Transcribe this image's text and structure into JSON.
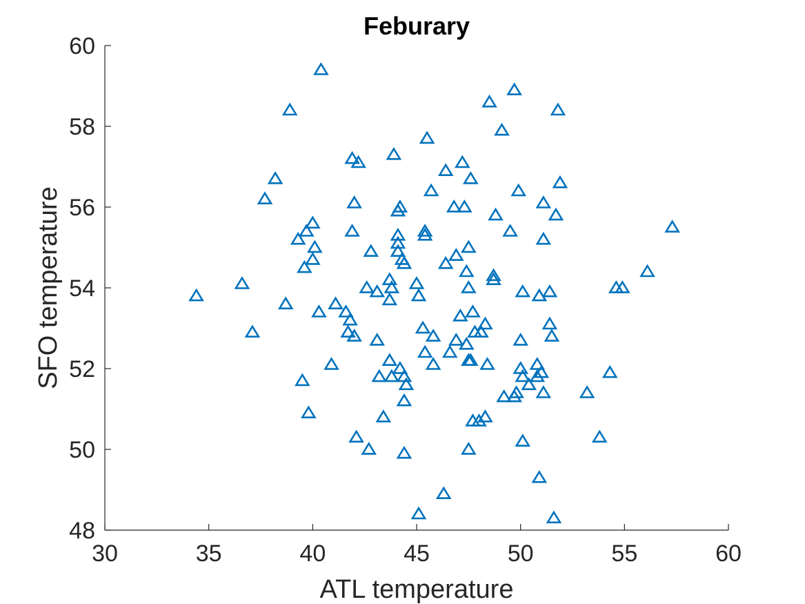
{
  "chart_data": {
    "type": "scatter",
    "title": "Feburary",
    "xlabel": "ATL temperature",
    "ylabel": "SFO temperature",
    "xlim": [
      30,
      60
    ],
    "ylim": [
      48,
      60
    ],
    "xticks": [
      30,
      35,
      40,
      45,
      50,
      55,
      60
    ],
    "yticks": [
      48,
      50,
      52,
      54,
      56,
      58,
      60
    ],
    "xtick_labels": [
      "30",
      "35",
      "40",
      "45",
      "50",
      "55",
      "60"
    ],
    "ytick_labels": [
      "48",
      "50",
      "52",
      "54",
      "56",
      "58",
      "60"
    ],
    "grid": false,
    "legend": false,
    "marker": "triangle",
    "marker_color": "#0072BD",
    "points": [
      [
        40.4,
        59.4
      ],
      [
        38.9,
        58.4
      ],
      [
        49.7,
        58.9
      ],
      [
        48.5,
        58.6
      ],
      [
        51.8,
        58.4
      ],
      [
        45.5,
        57.7
      ],
      [
        49.1,
        57.9
      ],
      [
        43.9,
        57.3
      ],
      [
        41.9,
        57.2
      ],
      [
        42.2,
        57.1
      ],
      [
        47.2,
        57.1
      ],
      [
        46.4,
        56.9
      ],
      [
        47.6,
        56.7
      ],
      [
        51.9,
        56.6
      ],
      [
        38.2,
        56.7
      ],
      [
        37.7,
        56.2
      ],
      [
        45.7,
        56.4
      ],
      [
        49.9,
        56.4
      ],
      [
        42.0,
        56.1
      ],
      [
        51.1,
        56.1
      ],
      [
        44.2,
        56.0
      ],
      [
        44.1,
        55.9
      ],
      [
        46.8,
        56.0
      ],
      [
        47.3,
        56.0
      ],
      [
        48.8,
        55.8
      ],
      [
        51.7,
        55.8
      ],
      [
        40.0,
        55.6
      ],
      [
        39.7,
        55.4
      ],
      [
        41.9,
        55.4
      ],
      [
        45.4,
        55.4
      ],
      [
        45.4,
        55.3
      ],
      [
        49.5,
        55.4
      ],
      [
        44.1,
        55.3
      ],
      [
        39.3,
        55.2
      ],
      [
        51.1,
        55.2
      ],
      [
        57.3,
        55.5
      ],
      [
        40.1,
        55.0
      ],
      [
        44.1,
        55.1
      ],
      [
        47.5,
        55.0
      ],
      [
        42.8,
        54.9
      ],
      [
        44.1,
        54.9
      ],
      [
        46.9,
        54.8
      ],
      [
        40.0,
        54.7
      ],
      [
        44.3,
        54.7
      ],
      [
        44.4,
        54.6
      ],
      [
        46.4,
        54.6
      ],
      [
        39.6,
        54.5
      ],
      [
        47.4,
        54.4
      ],
      [
        56.1,
        54.4
      ],
      [
        48.7,
        54.3
      ],
      [
        48.7,
        54.2
      ],
      [
        43.7,
        54.2
      ],
      [
        45.0,
        54.1
      ],
      [
        36.6,
        54.1
      ],
      [
        42.6,
        54.0
      ],
      [
        43.8,
        54.0
      ],
      [
        47.5,
        54.0
      ],
      [
        54.6,
        54.0
      ],
      [
        54.9,
        54.0
      ],
      [
        43.1,
        53.9
      ],
      [
        50.1,
        53.9
      ],
      [
        51.4,
        53.9
      ],
      [
        34.4,
        53.8
      ],
      [
        45.1,
        53.8
      ],
      [
        50.9,
        53.8
      ],
      [
        43.7,
        53.7
      ],
      [
        38.7,
        53.6
      ],
      [
        41.1,
        53.6
      ],
      [
        40.3,
        53.4
      ],
      [
        41.6,
        53.4
      ],
      [
        47.7,
        53.4
      ],
      [
        47.1,
        53.3
      ],
      [
        41.8,
        53.2
      ],
      [
        48.3,
        53.1
      ],
      [
        51.4,
        53.1
      ],
      [
        45.3,
        53.0
      ],
      [
        37.1,
        52.9
      ],
      [
        41.7,
        52.9
      ],
      [
        47.8,
        52.9
      ],
      [
        48.1,
        52.9
      ],
      [
        42.0,
        52.8
      ],
      [
        45.8,
        52.8
      ],
      [
        51.5,
        52.8
      ],
      [
        43.1,
        52.7
      ],
      [
        46.9,
        52.7
      ],
      [
        50.0,
        52.7
      ],
      [
        47.4,
        52.6
      ],
      [
        45.4,
        52.4
      ],
      [
        46.6,
        52.4
      ],
      [
        47.5,
        52.2
      ],
      [
        47.6,
        52.2
      ],
      [
        43.7,
        52.2
      ],
      [
        40.9,
        52.1
      ],
      [
        45.8,
        52.1
      ],
      [
        48.4,
        52.1
      ],
      [
        50.8,
        52.1
      ],
      [
        50.0,
        52.0
      ],
      [
        44.2,
        52.0
      ],
      [
        51.0,
        51.9
      ],
      [
        54.3,
        51.9
      ],
      [
        43.2,
        51.8
      ],
      [
        43.8,
        51.8
      ],
      [
        44.4,
        51.8
      ],
      [
        50.1,
        51.8
      ],
      [
        50.8,
        51.8
      ],
      [
        39.5,
        51.7
      ],
      [
        44.5,
        51.6
      ],
      [
        50.4,
        51.6
      ],
      [
        49.2,
        51.3
      ],
      [
        49.7,
        51.3
      ],
      [
        49.8,
        51.4
      ],
      [
        51.1,
        51.4
      ],
      [
        53.2,
        51.4
      ],
      [
        44.4,
        51.2
      ],
      [
        39.8,
        50.9
      ],
      [
        43.4,
        50.8
      ],
      [
        47.7,
        50.7
      ],
      [
        48.0,
        50.7
      ],
      [
        48.3,
        50.8
      ],
      [
        42.1,
        50.3
      ],
      [
        53.8,
        50.3
      ],
      [
        50.1,
        50.2
      ],
      [
        42.7,
        50.0
      ],
      [
        47.5,
        50.0
      ],
      [
        44.4,
        49.9
      ],
      [
        50.9,
        49.3
      ],
      [
        46.3,
        48.9
      ],
      [
        45.1,
        48.4
      ],
      [
        51.6,
        48.3
      ]
    ]
  }
}
